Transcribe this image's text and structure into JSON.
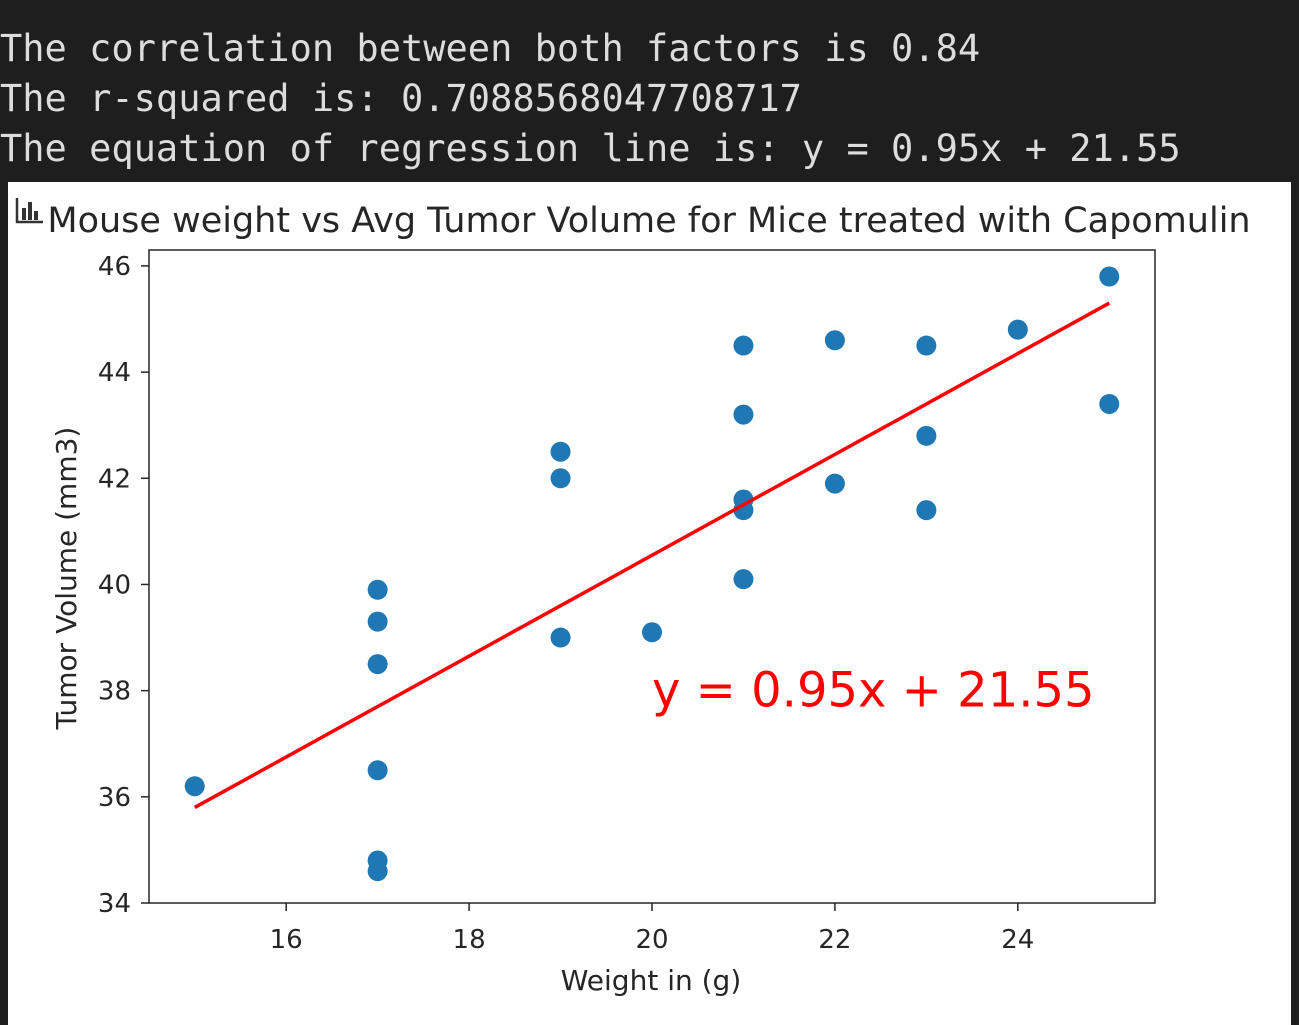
{
  "console": {
    "lines": [
      "The correlation between both factors is 0.84",
      "The r-squared is: 0.7088568047708717",
      "The equation of regression line is: y = 0.95x + 21.55"
    ]
  },
  "colors": {
    "background": "#1e1e1e",
    "console_text": "#dcdcdc",
    "plot_background": "#ffffff",
    "points": "#1f77b4",
    "regression_line": "#ff0000",
    "equation_text": "#ff0000"
  },
  "icons": {
    "chart_toggle": "bar-chart-icon"
  },
  "chart_data": {
    "type": "scatter",
    "title": "Mouse weight vs Avg Tumor Volume for Mice treated with Capomulin",
    "xlabel": "Weight in (g)",
    "ylabel": "Tumor Volume (mm3)",
    "xlim": [
      14.5,
      25.5
    ],
    "ylim": [
      34,
      46.3
    ],
    "xticks": [
      16,
      18,
      20,
      22,
      24
    ],
    "yticks": [
      34,
      36,
      38,
      40,
      42,
      44,
      46
    ],
    "grid": false,
    "points": [
      {
        "x": 15,
        "y": 36.2
      },
      {
        "x": 17,
        "y": 39.9
      },
      {
        "x": 17,
        "y": 39.3
      },
      {
        "x": 17,
        "y": 38.5
      },
      {
        "x": 17,
        "y": 36.5
      },
      {
        "x": 17,
        "y": 34.8
      },
      {
        "x": 17,
        "y": 34.6
      },
      {
        "x": 19,
        "y": 42.5
      },
      {
        "x": 19,
        "y": 42.0
      },
      {
        "x": 19,
        "y": 39.0
      },
      {
        "x": 20,
        "y": 39.1
      },
      {
        "x": 21,
        "y": 44.5
      },
      {
        "x": 21,
        "y": 43.2
      },
      {
        "x": 21,
        "y": 41.6
      },
      {
        "x": 21,
        "y": 41.4
      },
      {
        "x": 21,
        "y": 40.1
      },
      {
        "x": 22,
        "y": 44.6
      },
      {
        "x": 22,
        "y": 41.9
      },
      {
        "x": 23,
        "y": 44.5
      },
      {
        "x": 23,
        "y": 42.8
      },
      {
        "x": 23,
        "y": 41.4
      },
      {
        "x": 24,
        "y": 44.8
      },
      {
        "x": 25,
        "y": 45.8
      },
      {
        "x": 25,
        "y": 43.4
      }
    ],
    "regression": {
      "slope": 0.95,
      "intercept": 21.55,
      "x_range": [
        15,
        25
      ]
    },
    "annotation": {
      "text": "y = 0.95x + 21.55",
      "x": 20,
      "y": 37.7
    }
  }
}
